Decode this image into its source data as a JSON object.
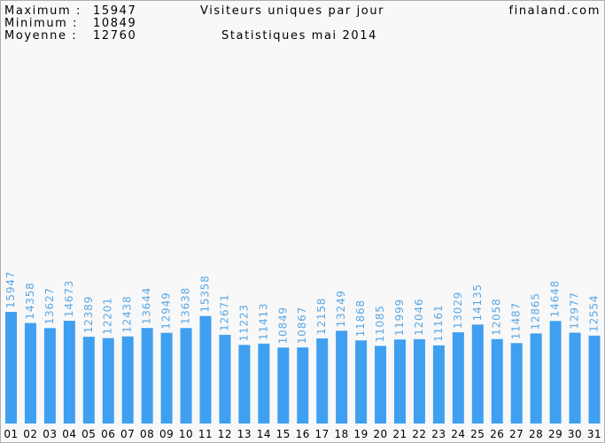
{
  "chart_data": {
    "type": "bar",
    "title": "Visiteurs uniques par jour",
    "subtitle": "Statistiques mai 2014",
    "site": "finaland.com",
    "stats": [
      {
        "label": "Maximum :",
        "value": 15947
      },
      {
        "label": "Minimum :",
        "value": 10849
      },
      {
        "label": "Moyenne :",
        "value": 12760
      }
    ],
    "categories": [
      "01",
      "02",
      "03",
      "04",
      "05",
      "06",
      "07",
      "08",
      "09",
      "10",
      "11",
      "12",
      "13",
      "14",
      "15",
      "16",
      "17",
      "18",
      "19",
      "20",
      "21",
      "22",
      "23",
      "24",
      "25",
      "26",
      "27",
      "28",
      "29",
      "30",
      "31"
    ],
    "values": [
      15947,
      14358,
      13627,
      14673,
      12389,
      12201,
      12438,
      13644,
      12949,
      13638,
      15358,
      12671,
      11223,
      11413,
      10849,
      10867,
      12158,
      13249,
      11868,
      11085,
      11999,
      12046,
      11161,
      13029,
      14135,
      12058,
      11487,
      12865,
      14648,
      12977,
      12554
    ],
    "color": "#3f9ff0",
    "label_color": "#5aa8e6",
    "ylim": [
      0,
      20000
    ]
  }
}
